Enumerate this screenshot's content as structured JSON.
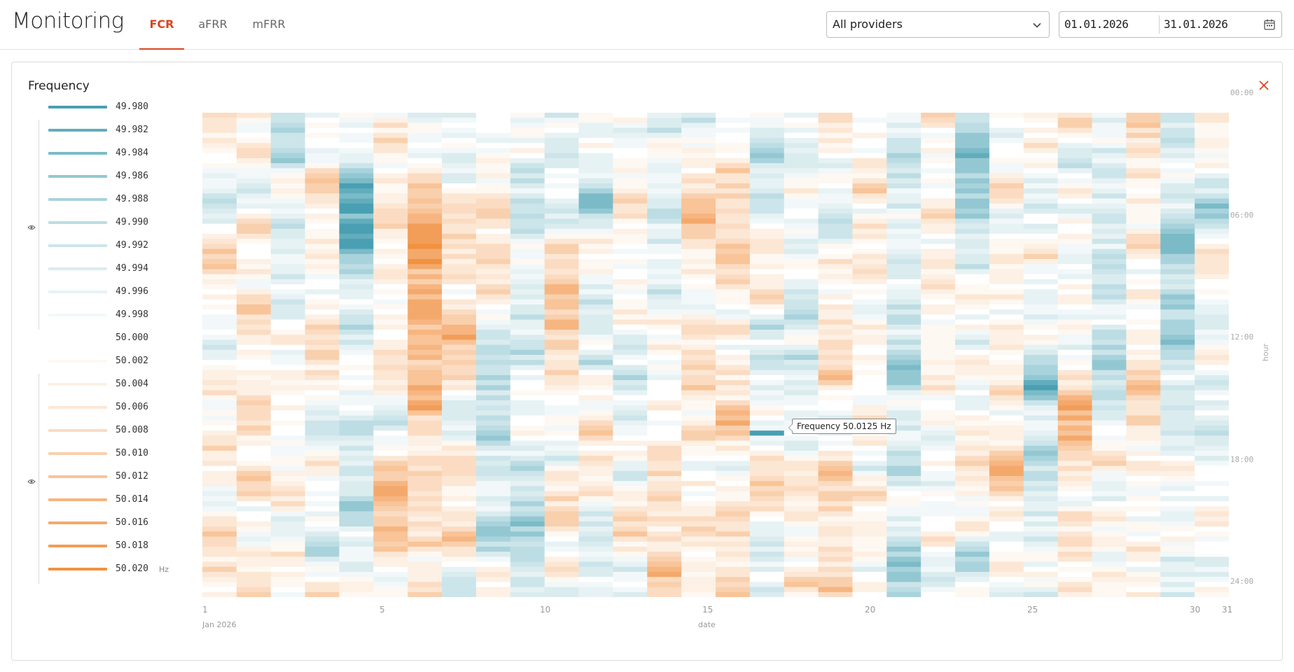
{
  "app": {
    "title": "Monitoring",
    "tabs": [
      {
        "label": "FCR",
        "active": true
      },
      {
        "label": "aFRR",
        "active": false
      },
      {
        "label": "mFRR",
        "active": false
      }
    ]
  },
  "filters": {
    "provider": "All providers",
    "date_from": "01.01.2026",
    "date_to": "31.01.2026"
  },
  "card": {
    "title": "Frequency"
  },
  "legend": {
    "unit": "Hz",
    "items": [
      {
        "label": "49.980",
        "color": "#4a9fb2"
      },
      {
        "label": "49.982",
        "color": "#62adbd"
      },
      {
        "label": "49.984",
        "color": "#7bbbc8"
      },
      {
        "label": "49.986",
        "color": "#93c8d2"
      },
      {
        "label": "49.988",
        "color": "#a9d3dc"
      },
      {
        "label": "49.990",
        "color": "#bcdde3"
      },
      {
        "label": "49.992",
        "color": "#cce5ea"
      },
      {
        "label": "49.994",
        "color": "#dbecef"
      },
      {
        "label": "49.996",
        "color": "#e7f2f4"
      },
      {
        "label": "49.998",
        "color": "#f2f8f9"
      },
      {
        "label": "50.000",
        "color": "#ffffff"
      },
      {
        "label": "50.002",
        "color": "#fef8f2"
      },
      {
        "label": "50.004",
        "color": "#fdf0e4"
      },
      {
        "label": "50.006",
        "color": "#fce7d4"
      },
      {
        "label": "50.008",
        "color": "#fbdcc2"
      },
      {
        "label": "50.010",
        "color": "#f9d0ad"
      },
      {
        "label": "50.012",
        "color": "#f8c498"
      },
      {
        "label": "50.014",
        "color": "#f6b581"
      },
      {
        "label": "50.016",
        "color": "#f4a96c"
      },
      {
        "label": "50.018",
        "color": "#f29d58"
      },
      {
        "label": "50.020",
        "color": "#f0923f"
      }
    ]
  },
  "tooltip": {
    "text": "Frequency 50.0125 Hz"
  },
  "chart_data": {
    "type": "heatmap",
    "title": "Frequency",
    "xlabel": "date",
    "ylabel": "hour",
    "x_domain": [
      "2026-01-01",
      "2026-01-31"
    ],
    "x_tick_labels": [
      "1",
      "5",
      "10",
      "15",
      "20",
      "25",
      "30",
      "31"
    ],
    "x_subtitle": "Jan 2026",
    "y_tick_labels": [
      "00:00",
      "06:00",
      "12:00",
      "18:00",
      "24:00"
    ],
    "color_scale": {
      "min": 49.98,
      "max": 50.02,
      "unit": "Hz",
      "low_color": "#4a9fb2",
      "mid_color": "#ffffff",
      "high_color": "#f0923f"
    },
    "grid": false,
    "legend": "left",
    "highlighted_cell": {
      "day": 17,
      "time": "15:45",
      "value": 50.0125
    }
  }
}
